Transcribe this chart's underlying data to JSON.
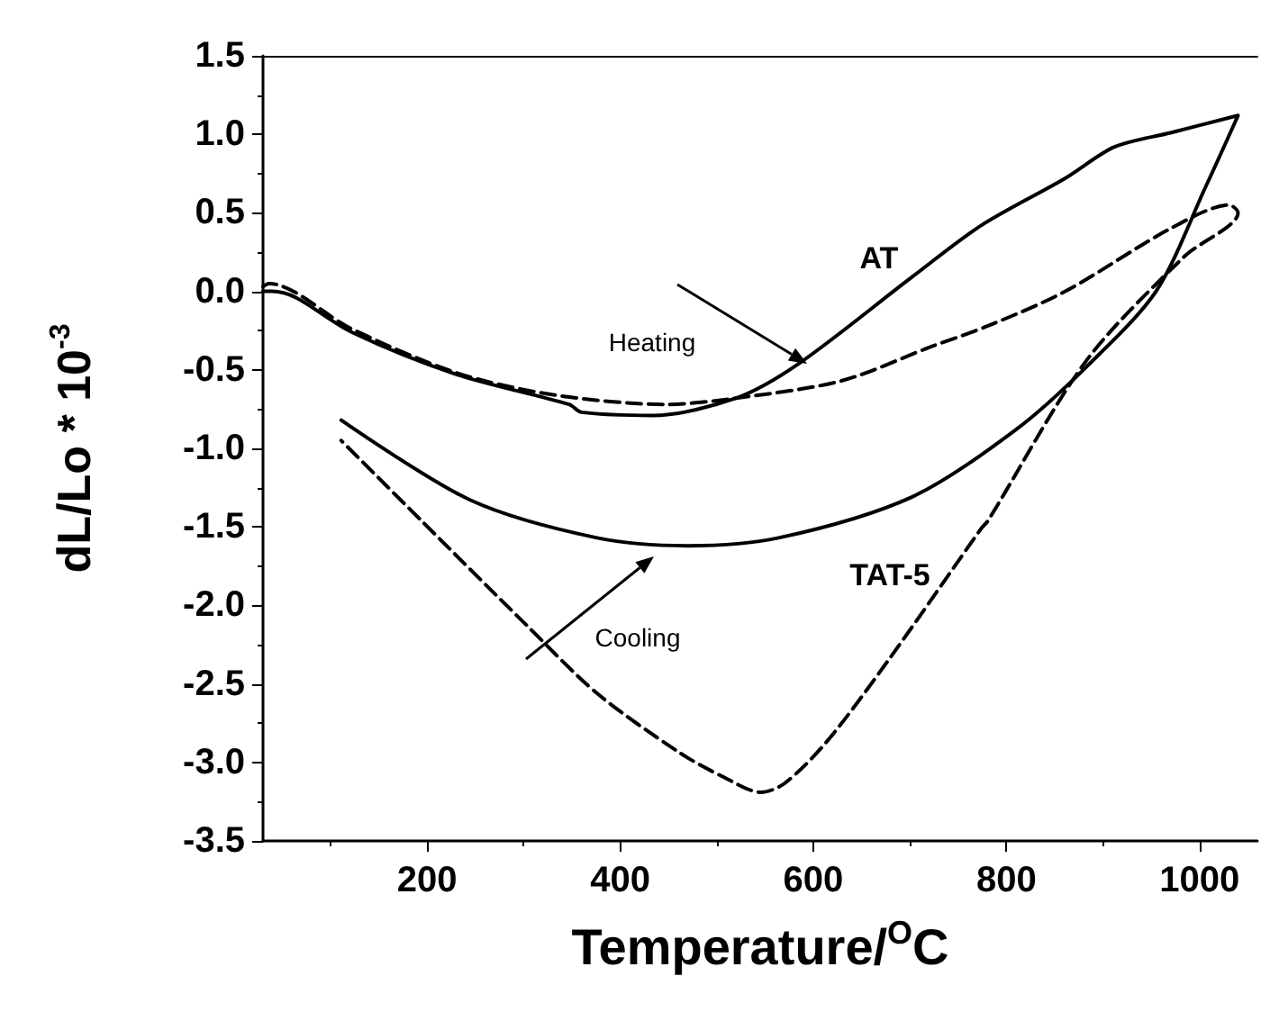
{
  "chart_data": {
    "type": "line",
    "xlabel": "Temperature/$^{O}$C",
    "ylabel": "dL/Lo * 10$^{-3}$",
    "xlim": [
      30,
      1060
    ],
    "xticks": [
      200,
      400,
      600,
      800,
      1000
    ],
    "ylim": [
      -3.5,
      1.5
    ],
    "yticks": [
      -3.5,
      {
        "value": -3,
        "label": "-3.0"
      },
      -2.5,
      {
        "value": -2,
        "label": "-2.0"
      },
      -1.5,
      {
        "value": -1,
        "label": "-1.0"
      },
      -0.5,
      {
        "value": 0,
        "label": "0.0"
      },
      0.5,
      {
        "value": 1,
        "label": "1.0"
      },
      1.5
    ],
    "grid": false,
    "legend": false,
    "marker": "none",
    "series": [
      {
        "name": "AT",
        "color": "#000000",
        "line_style": "solid",
        "x": [
          30,
          39,
          64,
          122,
          231,
          347,
          360,
          434,
          520,
          585,
          702,
          774,
          861,
          912,
          970,
          1040,
          1006,
          955,
          883,
          810,
          702,
          564,
          470,
          376,
          245,
          111
        ],
        "values": [
          0,
          0,
          -0.04,
          -0.26,
          -0.53,
          -0.72,
          -0.77,
          -0.79,
          -0.68,
          -0.46,
          0.09,
          0.42,
          0.72,
          0.92,
          1.01,
          1.12,
          0.66,
          0,
          -0.48,
          -0.88,
          -1.31,
          -1.57,
          -1.62,
          -1.57,
          -1.33,
          -0.82
        ]
      },
      {
        "name": "TAT-5",
        "color": "#000000",
        "line_style": "dashed",
        "x": [
          30,
          36,
          122,
          231,
          332,
          448,
          520,
          629,
          723,
          781,
          861,
          970,
          1031,
          1040,
          984,
          883,
          781,
          774,
          680,
          615,
          571,
          546,
          506,
          462,
          376,
          302,
          194,
          111
        ],
        "values": [
          0.03,
          0.05,
          -0.24,
          -0.52,
          -0.66,
          -0.72,
          -0.68,
          -0.57,
          -0.35,
          -0.22,
          0,
          0.4,
          0.55,
          0.5,
          0.22,
          -0.44,
          -1.46,
          -1.51,
          -2.33,
          -2.86,
          -3.13,
          -3.19,
          -3.09,
          -2.94,
          -2.56,
          -2.12,
          -1.46,
          -0.95
        ]
      }
    ],
    "annotations": [
      "Heating",
      "Cooling"
    ]
  }
}
